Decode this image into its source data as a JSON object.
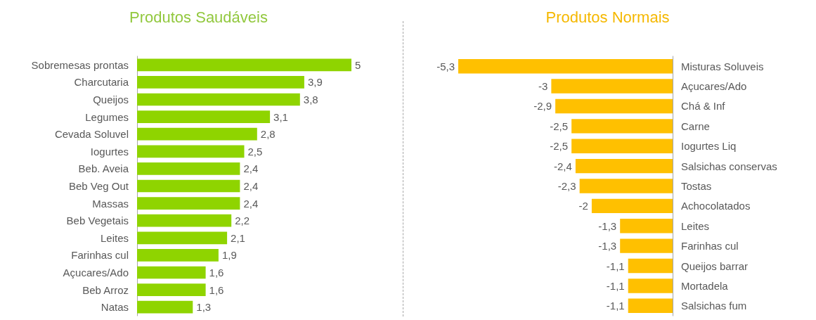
{
  "chart_data": [
    {
      "type": "bar",
      "orientation": "horizontal",
      "title": "Produtos Saudáveis",
      "categories": [
        "Sobremesas prontas",
        "Charcutaria",
        "Queijos",
        "Legumes",
        "Cevada Soluvel",
        "Iogurtes",
        "Beb. Aveia",
        "Beb Veg Out",
        "Massas",
        "Beb Vegetais",
        "Leites",
        "Farinhas cul",
        "Açucares/Ado",
        "Beb Arroz",
        "Natas"
      ],
      "values": [
        5,
        3.9,
        3.8,
        3.1,
        2.8,
        2.5,
        2.4,
        2.4,
        2.4,
        2.2,
        2.1,
        1.9,
        1.6,
        1.6,
        1.3
      ],
      "value_labels": [
        "5",
        "3,9",
        "3,8",
        "3,1",
        "2,8",
        "2,5",
        "2,4",
        "2,4",
        "2,4",
        "2,2",
        "2,1",
        "1,9",
        "1,6",
        "1,6",
        "1,3"
      ],
      "color": "#8fd400",
      "tick_labels": "y",
      "grid": false
    },
    {
      "type": "bar",
      "orientation": "horizontal",
      "title": "Produtos Normais",
      "categories": [
        "Misturas Soluveis",
        "Açucares/Ado",
        "Chá & Inf",
        "Carne",
        "Iogurtes Liq",
        "Salsichas conservas",
        "Tostas",
        "Achocolatados",
        "Leites",
        "Farinhas cul",
        "Queijos barrar",
        "Mortadela",
        "Salsichas fum"
      ],
      "values": [
        -5.3,
        -3,
        -2.9,
        -2.5,
        -2.5,
        -2.4,
        -2.3,
        -2,
        -1.3,
        -1.3,
        -1.1,
        -1.1,
        -1.1
      ],
      "value_labels": [
        "-5,3",
        "-3",
        "-2,9",
        "-2,5",
        "-2,5",
        "-2,4",
        "-2,3",
        "-2",
        "-1,3",
        "-1,3",
        "-1,1",
        "-1,1",
        "-1,1"
      ],
      "color": "#ffc000",
      "tick_labels": "y",
      "grid": false
    }
  ]
}
